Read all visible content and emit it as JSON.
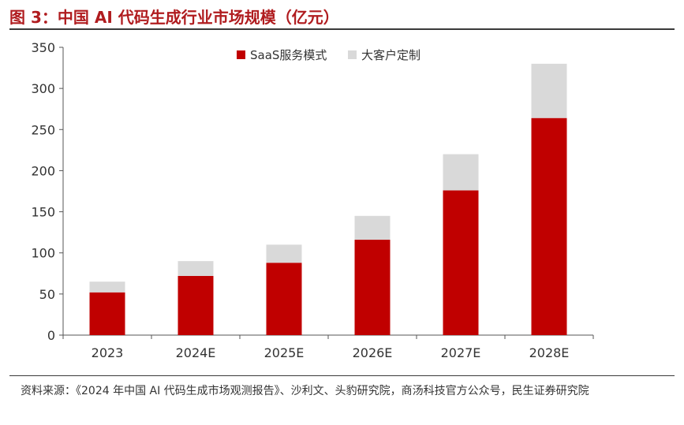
{
  "header": {
    "title": "图 3：中国 AI 代码生成行业市场规模（亿元）"
  },
  "footer": {
    "source": "资料来源：《2024 年中国 AI 代码生成市场观测报告》、沙利文、头豹研究院，商汤科技官方公众号，民生证券研究院"
  },
  "colors": {
    "saas": "#c00000",
    "custom": "#d9d9d9",
    "title": "#b01c1f"
  },
  "chart_data": {
    "type": "bar",
    "stacked": true,
    "categories": [
      "2023",
      "2024E",
      "2025E",
      "2026E",
      "2027E",
      "2028E"
    ],
    "series": [
      {
        "name": "SaaS服务模式",
        "values": [
          52,
          72,
          88,
          116,
          176,
          264
        ]
      },
      {
        "name": "大客户定制",
        "values": [
          13,
          18,
          22,
          29,
          44,
          66
        ]
      }
    ],
    "ylim": [
      0,
      350
    ],
    "yticks": [
      0,
      50,
      100,
      150,
      200,
      250,
      300,
      350
    ],
    "grid": false,
    "legend": "top-center"
  }
}
